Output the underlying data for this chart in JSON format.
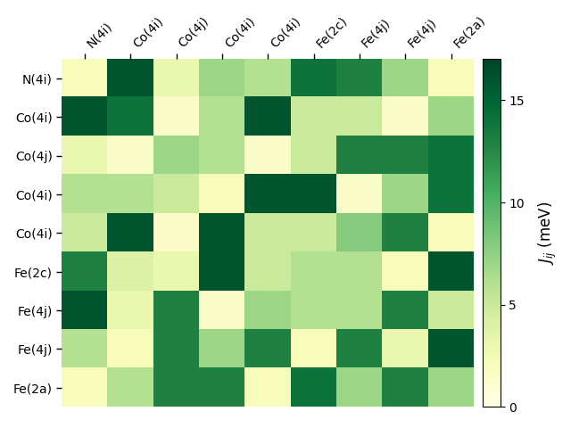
{
  "labels": [
    "N(4i)",
    "Co(4i)",
    "Co(4j)",
    "Co(4i)",
    "Co(4i)",
    "Fe(2c)",
    "Fe(4j)",
    "Fe(4j)",
    "Fe(2a)"
  ],
  "col_labels": [
    "N(4i)",
    "Co(4i)",
    "Co(4j)",
    "Co(4i)",
    "Co(4i)",
    "Fe(2c)",
    "Fe(4j)",
    "Fe(4j)",
    "Fe(2a)"
  ],
  "matrix": [
    [
      2.0,
      16.0,
      3.0,
      7.0,
      6.0,
      14.0,
      13.0,
      7.0,
      2.0
    ],
    [
      16.0,
      14.0,
      1.5,
      6.0,
      16.0,
      5.0,
      5.0,
      1.5,
      7.0
    ],
    [
      3.0,
      1.5,
      7.0,
      6.0,
      1.5,
      5.0,
      13.0,
      13.0,
      14.0
    ],
    [
      6.0,
      6.0,
      5.0,
      2.0,
      16.0,
      16.0,
      1.5,
      7.0,
      14.0
    ],
    [
      5.0,
      16.0,
      1.5,
      16.0,
      5.0,
      5.0,
      8.0,
      13.0,
      2.0
    ],
    [
      13.0,
      4.0,
      3.0,
      16.0,
      5.0,
      6.0,
      6.0,
      2.0,
      16.0
    ],
    [
      16.0,
      3.0,
      13.0,
      1.5,
      7.0,
      6.0,
      6.0,
      13.0,
      5.0
    ],
    [
      6.0,
      2.0,
      13.0,
      7.0,
      13.0,
      2.0,
      13.0,
      3.0,
      16.0
    ],
    [
      2.0,
      6.0,
      13.0,
      13.0,
      2.0,
      14.0,
      7.0,
      13.0,
      7.0
    ]
  ],
  "cmap": "YlGn",
  "vmin": 0,
  "vmax": 17,
  "colorbar_label": "$J_{ij}$ (meV)",
  "colorbar_ticks": [
    0,
    5,
    10,
    15
  ],
  "figsize": [
    6.4,
    4.8
  ],
  "dpi": 100
}
